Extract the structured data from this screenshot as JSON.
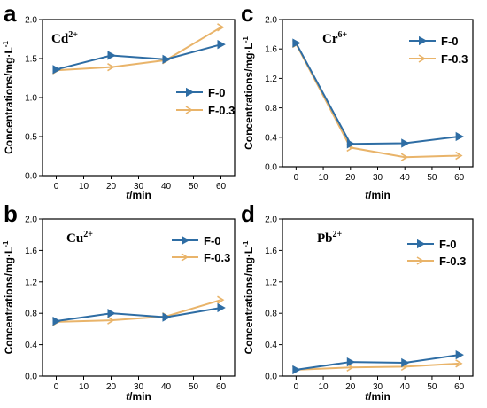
{
  "chart_data": [
    {
      "type": "line",
      "panel_letter": "a",
      "ion": "Cd",
      "ion_charge": "2+",
      "x": [
        0,
        20,
        40,
        60
      ],
      "xticks": [
        0,
        10,
        20,
        30,
        40,
        50,
        60
      ],
      "xlim": [
        -5,
        65
      ],
      "yticks": [
        "0.0",
        "0.5",
        "1.0",
        "1.5",
        "2.0"
      ],
      "ylim": [
        0,
        2.0
      ],
      "ylabel": "Concentrations/mg·L",
      "ylabel_sup": "-1",
      "xlabel_italic": "t",
      "xlabel_rest": "/min",
      "legend_position": "center-right",
      "series": [
        {
          "name": "F-0",
          "values": [
            1.36,
            1.54,
            1.49,
            1.68
          ],
          "color": "#2e6da4",
          "marker": "triangle-right"
        },
        {
          "name": "F-0.3",
          "values": [
            1.35,
            1.39,
            1.48,
            1.9
          ],
          "color": "#e9b46a",
          "marker": "chevron-right"
        }
      ]
    },
    {
      "type": "line",
      "panel_letter": "c",
      "ion": "Cr",
      "ion_charge": "6+",
      "x": [
        0,
        20,
        40,
        60
      ],
      "xticks": [
        0,
        10,
        20,
        30,
        40,
        50,
        60
      ],
      "xlim": [
        -5,
        65
      ],
      "yticks": [
        "0.0",
        "0.4",
        "0.8",
        "1.2",
        "1.6",
        "2.0"
      ],
      "ylim": [
        0,
        2.0
      ],
      "ylabel": "Concentrations/mg·L",
      "ylabel_sup": "-1",
      "xlabel_italic": "t",
      "xlabel_rest": "/min",
      "legend_position": "top-right",
      "series": [
        {
          "name": "F-0",
          "values": [
            1.68,
            0.31,
            0.32,
            0.41
          ],
          "color": "#2e6da4",
          "marker": "triangle-right"
        },
        {
          "name": "F-0.3",
          "values": [
            1.67,
            0.26,
            0.13,
            0.15
          ],
          "color": "#e9b46a",
          "marker": "chevron-right"
        }
      ]
    },
    {
      "type": "line",
      "panel_letter": "b",
      "ion": "Cu",
      "ion_charge": "2+",
      "x": [
        0,
        20,
        40,
        60
      ],
      "xticks": [
        0,
        10,
        20,
        30,
        40,
        50,
        60
      ],
      "xlim": [
        -5,
        65
      ],
      "yticks": [
        "0.0",
        "0.4",
        "0.8",
        "1.2",
        "1.6",
        "2.0"
      ],
      "ylim": [
        0,
        2.0
      ],
      "ylabel": "Concentrations/mg·L",
      "ylabel_sup": "-1",
      "xlabel_italic": "t",
      "xlabel_rest": "/min",
      "legend_position": "top-right",
      "series": [
        {
          "name": "F-0",
          "values": [
            0.7,
            0.8,
            0.75,
            0.87
          ],
          "color": "#2e6da4",
          "marker": "triangle-right"
        },
        {
          "name": "F-0.3",
          "values": [
            0.69,
            0.71,
            0.76,
            0.97
          ],
          "color": "#e9b46a",
          "marker": "chevron-right"
        }
      ]
    },
    {
      "type": "line",
      "panel_letter": "d",
      "ion": "Pb",
      "ion_charge": "2+",
      "x": [
        0,
        20,
        40,
        60
      ],
      "xticks": [
        0,
        10,
        20,
        30,
        40,
        50,
        60
      ],
      "xlim": [
        -5,
        65
      ],
      "yticks": [
        "0.0",
        "0.4",
        "0.8",
        "1.2",
        "1.6",
        "2.0"
      ],
      "ylim": [
        0,
        2.0
      ],
      "ylabel": "Concentrations/mg·L",
      "ylabel_sup": "-1",
      "xlabel_italic": "t",
      "xlabel_rest": "/min",
      "legend_position": "top-right",
      "series": [
        {
          "name": "F-0",
          "values": [
            0.08,
            0.18,
            0.17,
            0.27
          ],
          "color": "#2e6da4",
          "marker": "triangle-right"
        },
        {
          "name": "F-0.3",
          "values": [
            0.08,
            0.11,
            0.12,
            0.16
          ],
          "color": "#e9b46a",
          "marker": "chevron-right"
        }
      ]
    }
  ]
}
